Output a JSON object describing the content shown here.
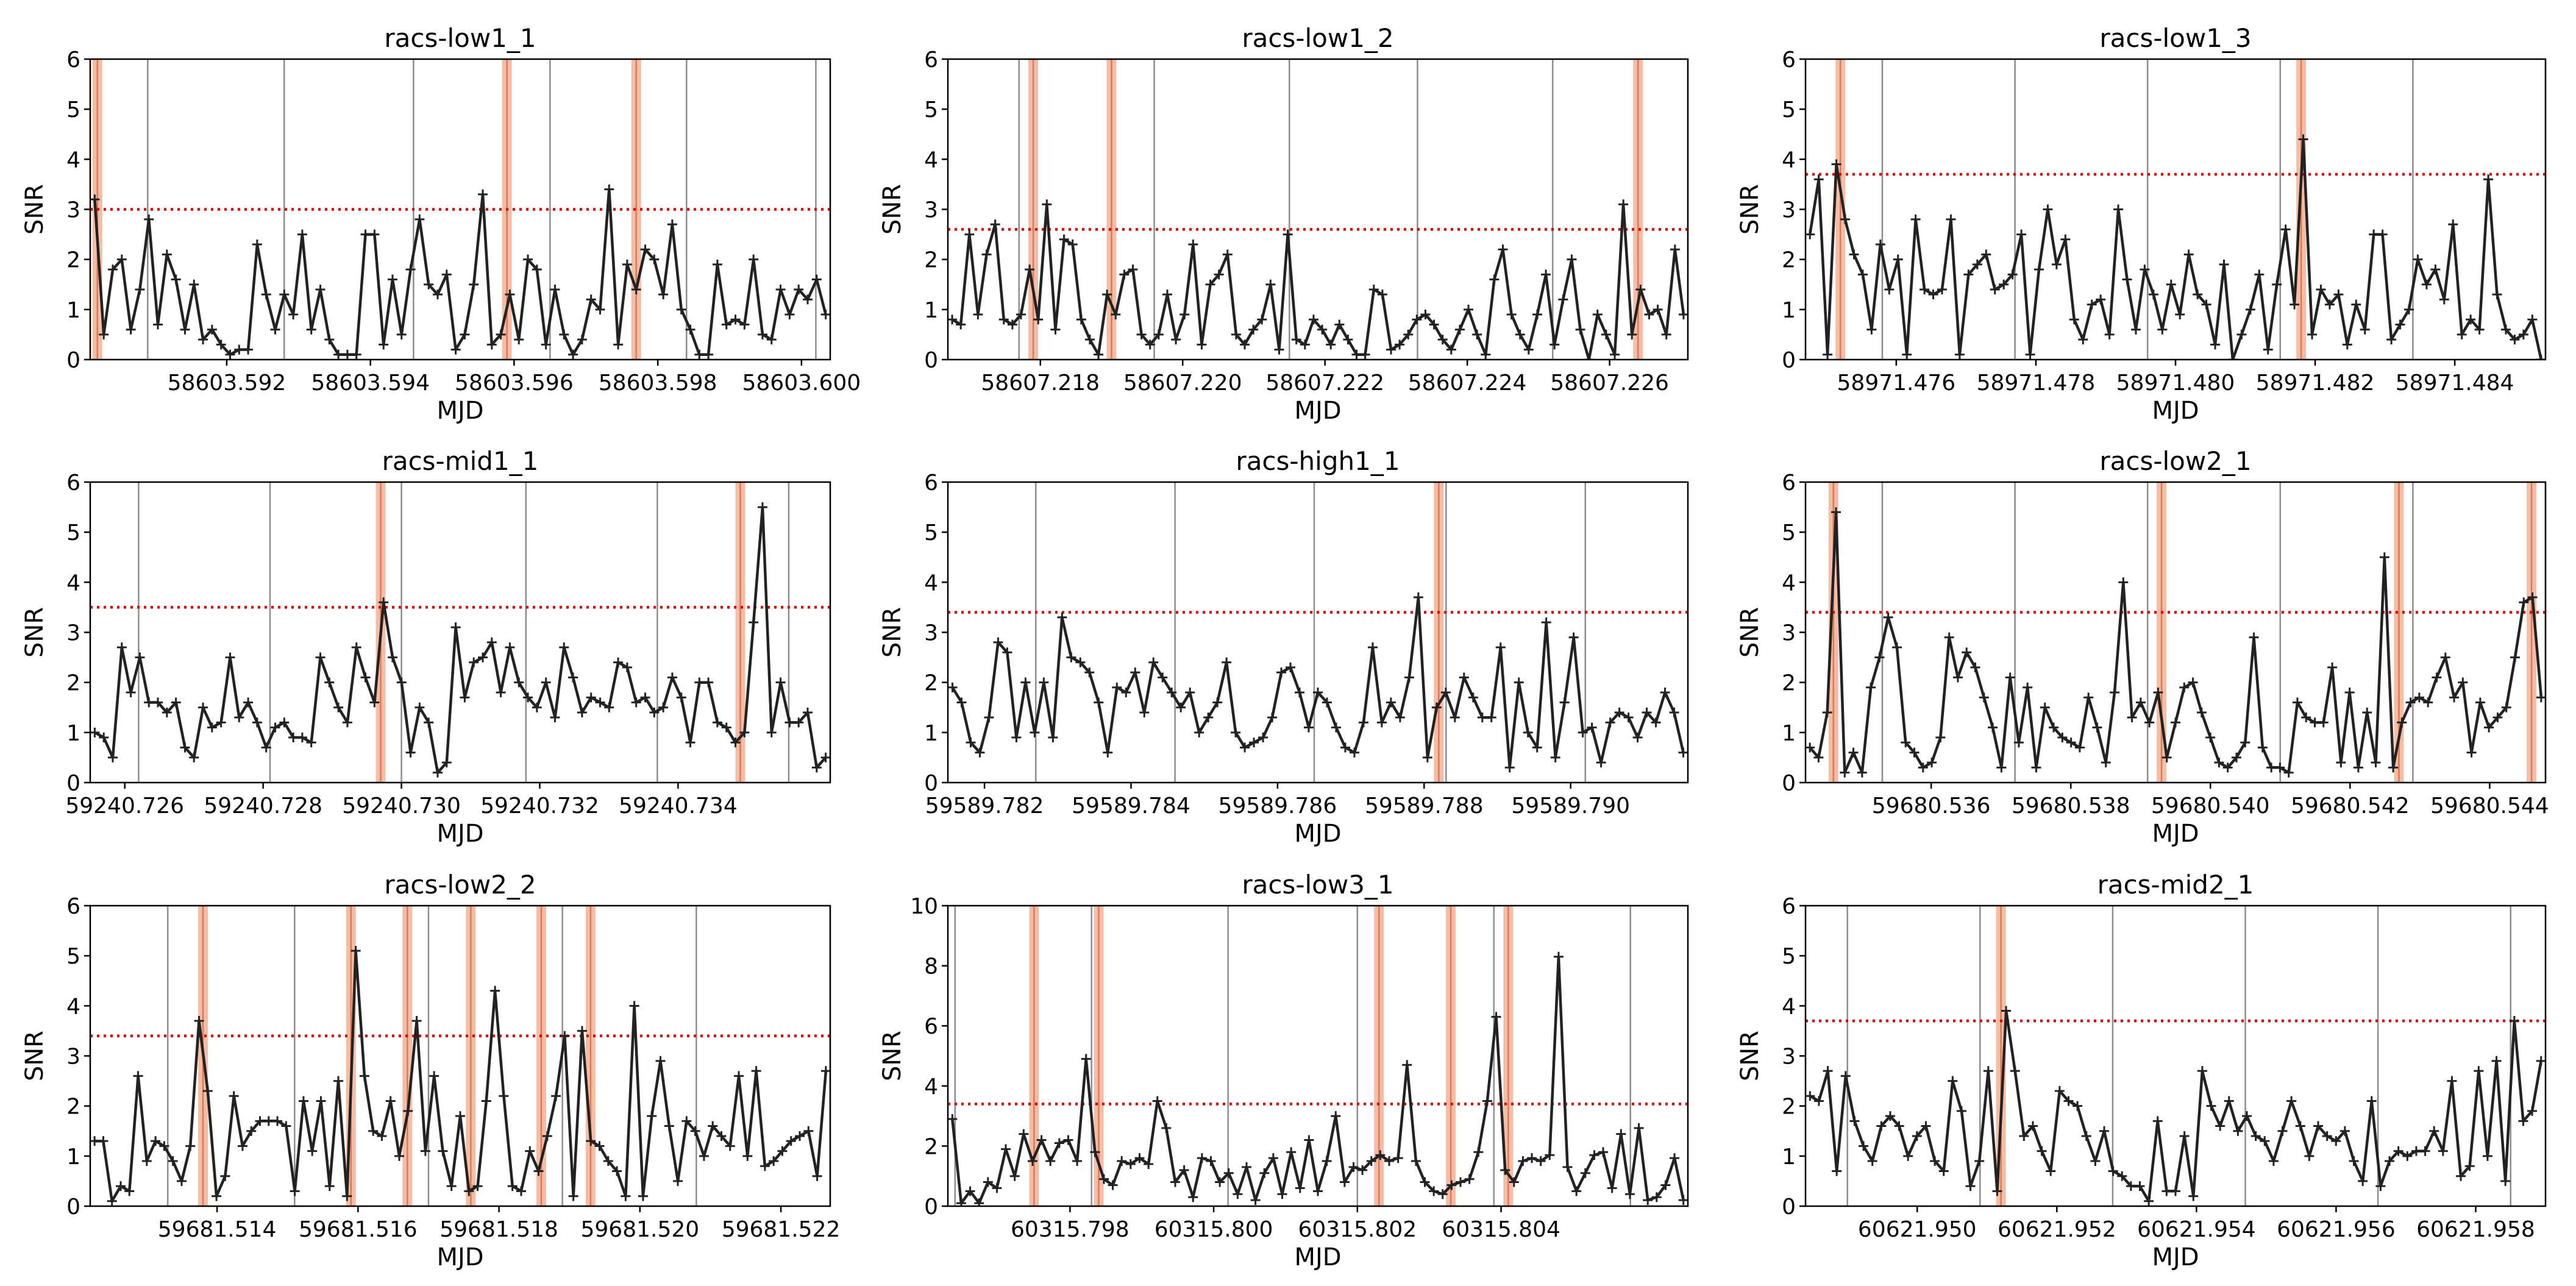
{
  "figure": {
    "background": "#ffffff",
    "colors": {
      "line": "#222222",
      "threshold": "#e00000",
      "highlight": "#f4b196",
      "highlight_edge": "#d97a55",
      "gridline": "#8c8c8c"
    }
  },
  "chart_data": [
    {
      "type": "line",
      "title": "racs-low1_1",
      "xlabel": "MJD",
      "ylabel": "SNR",
      "ylim": [
        0,
        6
      ],
      "yticks": [
        0,
        1,
        2,
        3,
        4,
        5,
        6
      ],
      "xlim": [
        58603.5901,
        58603.6004
      ],
      "xtick_values": [
        58603.592,
        58603.594,
        58603.596,
        58603.598,
        58603.6
      ],
      "xtick_labels": [
        "58603.592",
        "58603.594",
        "58603.596",
        "58603.598",
        "58603.600"
      ],
      "threshold": 3.0,
      "vlines": [
        58603.5909,
        58603.5928,
        58603.5946,
        58603.5965,
        58603.5984,
        58603.6002
      ],
      "highlights": [
        58603.5902,
        58603.5959,
        58603.5977
      ],
      "y": [
        3.2,
        0.5,
        1.8,
        2.0,
        0.6,
        1.4,
        2.8,
        0.7,
        2.1,
        1.6,
        0.6,
        1.5,
        0.4,
        0.6,
        0.3,
        0.1,
        0.2,
        0.2,
        2.3,
        1.3,
        0.6,
        1.3,
        0.9,
        2.5,
        0.6,
        1.4,
        0.4,
        0.1,
        0.1,
        0.1,
        2.5,
        2.5,
        0.3,
        1.6,
        0.5,
        1.8,
        2.8,
        1.5,
        1.3,
        1.7,
        0.2,
        0.5,
        1.5,
        3.3,
        0.3,
        0.5,
        1.3,
        0.4,
        2.0,
        1.8,
        0.3,
        1.4,
        0.5,
        0.1,
        0.4,
        1.2,
        1.0,
        3.4,
        0.3,
        1.9,
        1.4,
        2.2,
        2.0,
        1.3,
        2.7,
        1.0,
        0.6,
        0.1,
        0.1,
        1.9,
        0.7,
        0.8,
        0.7,
        2.0,
        0.5,
        0.4,
        1.4,
        0.9,
        1.4,
        1.2,
        1.6,
        0.9
      ]
    },
    {
      "type": "line",
      "title": "racs-low1_2",
      "xlabel": "MJD",
      "ylabel": "SNR",
      "ylim": [
        0,
        6
      ],
      "yticks": [
        0,
        1,
        2,
        3,
        4,
        5,
        6
      ],
      "xlim": [
        58607.2167,
        58607.2271
      ],
      "xtick_values": [
        58607.218,
        58607.22,
        58607.222,
        58607.224,
        58607.226
      ],
      "xtick_labels": [
        "58607.218",
        "58607.220",
        "58607.222",
        "58607.224",
        "58607.226"
      ],
      "threshold": 2.6,
      "vlines": [
        58607.2177,
        58607.2196,
        58607.2215,
        58607.2233,
        58607.2252,
        58607.2271
      ],
      "highlights": [
        58607.2179,
        58607.219,
        58607.2264
      ],
      "y": [
        0.8,
        0.7,
        2.5,
        0.9,
        2.1,
        2.7,
        0.8,
        0.7,
        0.9,
        1.8,
        0.8,
        3.1,
        0.6,
        2.4,
        2.3,
        0.8,
        0.4,
        0.1,
        1.3,
        0.9,
        1.7,
        1.8,
        0.5,
        0.3,
        0.5,
        1.3,
        0.4,
        0.9,
        2.3,
        0.3,
        1.5,
        1.7,
        2.1,
        0.5,
        0.3,
        0.6,
        0.8,
        1.5,
        0.2,
        2.5,
        0.4,
        0.3,
        0.8,
        0.6,
        0.3,
        0.7,
        0.4,
        0.1,
        0.1,
        1.4,
        1.3,
        0.2,
        0.3,
        0.5,
        0.8,
        0.9,
        0.7,
        0.4,
        0.2,
        0.6,
        1.0,
        0.5,
        0.1,
        1.6,
        2.2,
        0.9,
        0.5,
        0.2,
        0.9,
        1.7,
        0.3,
        1.2,
        2.0,
        0.6,
        0.0,
        0.9,
        0.5,
        0.1,
        3.1,
        0.5,
        1.4,
        0.9,
        1.0,
        0.5,
        2.2,
        0.9
      ]
    },
    {
      "type": "line",
      "title": "racs-low1_3",
      "xlabel": "MJD",
      "ylabel": "SNR",
      "ylim": [
        0,
        6
      ],
      "yticks": [
        0,
        1,
        2,
        3,
        4,
        5,
        6
      ],
      "xlim": [
        58971.4747,
        58971.4853
      ],
      "xtick_values": [
        58971.476,
        58971.478,
        58971.48,
        58971.482,
        58971.484
      ],
      "xtick_labels": [
        "58971.476",
        "58971.478",
        "58971.480",
        "58971.482",
        "58971.484"
      ],
      "threshold": 3.7,
      "vlines": [
        58971.4758,
        58971.4777,
        58971.4796,
        58971.4815,
        58971.4834,
        58971.4853
      ],
      "highlights": [
        58971.4752,
        58971.4818
      ],
      "y": [
        2.5,
        3.6,
        0.1,
        3.9,
        2.8,
        2.1,
        1.7,
        0.6,
        2.3,
        1.4,
        2.0,
        0.1,
        2.8,
        1.4,
        1.3,
        1.4,
        2.8,
        0.1,
        1.7,
        1.9,
        2.1,
        1.4,
        1.5,
        1.7,
        2.5,
        0.1,
        1.8,
        3.0,
        1.9,
        2.4,
        0.8,
        0.4,
        1.1,
        1.2,
        0.5,
        3.0,
        1.6,
        0.6,
        1.8,
        1.3,
        0.6,
        1.5,
        0.9,
        2.1,
        1.3,
        1.1,
        0.3,
        1.9,
        0.0,
        0.5,
        1.0,
        1.7,
        0.2,
        1.5,
        2.6,
        1.1,
        4.4,
        0.5,
        1.4,
        1.1,
        1.3,
        0.3,
        1.1,
        0.6,
        2.5,
        2.5,
        0.4,
        0.7,
        1.0,
        2.0,
        1.5,
        1.8,
        1.2,
        2.7,
        0.5,
        0.8,
        0.6,
        3.6,
        1.3,
        0.6,
        0.4,
        0.5,
        0.8,
        0.0
      ]
    },
    {
      "type": "line",
      "title": "racs-mid1_1",
      "xlabel": "MJD",
      "ylabel": "SNR",
      "ylim": [
        0,
        6
      ],
      "yticks": [
        0,
        1,
        2,
        3,
        4,
        5,
        6
      ],
      "xlim": [
        59240.7255,
        59240.7362
      ],
      "xtick_values": [
        59240.726,
        59240.728,
        59240.73,
        59240.732,
        59240.734
      ],
      "xtick_labels": [
        "59240.726",
        "59240.728",
        "59240.730",
        "59240.732",
        "59240.734"
      ],
      "threshold": 3.5,
      "vlines": [
        59240.7262,
        59240.7281,
        59240.73,
        59240.7318,
        59240.7337,
        59240.7356
      ],
      "highlights": [
        59240.7297,
        59240.7349
      ],
      "y": [
        1.0,
        0.9,
        0.5,
        2.7,
        1.8,
        2.5,
        1.6,
        1.6,
        1.4,
        1.6,
        0.7,
        0.5,
        1.5,
        1.1,
        1.2,
        2.5,
        1.3,
        1.6,
        1.2,
        0.7,
        1.1,
        1.2,
        0.9,
        0.9,
        0.8,
        2.5,
        2.0,
        1.5,
        1.2,
        2.7,
        2.1,
        1.6,
        3.6,
        2.5,
        2.0,
        0.6,
        1.5,
        1.2,
        0.2,
        0.4,
        3.1,
        1.7,
        2.4,
        2.5,
        2.8,
        1.8,
        2.7,
        2.0,
        1.7,
        1.5,
        2.0,
        1.3,
        2.7,
        2.1,
        1.4,
        1.7,
        1.6,
        1.5,
        2.4,
        2.3,
        1.6,
        1.7,
        1.4,
        1.5,
        2.1,
        1.7,
        0.8,
        2.0,
        2.0,
        1.2,
        1.1,
        0.8,
        1.0,
        3.2,
        5.5,
        1.0,
        2.0,
        1.2,
        1.2,
        1.4,
        0.3,
        0.5
      ]
    },
    {
      "type": "line",
      "title": "racs-high1_1",
      "xlabel": "MJD",
      "ylabel": "SNR",
      "ylim": [
        0,
        6
      ],
      "yticks": [
        0,
        1,
        2,
        3,
        4,
        5,
        6
      ],
      "xlim": [
        59589.7815,
        59589.7916
      ],
      "xtick_values": [
        59589.782,
        59589.784,
        59589.786,
        59589.788,
        59589.79
      ],
      "xtick_labels": [
        "59589.782",
        "59589.784",
        "59589.786",
        "59589.788",
        "59589.790"
      ],
      "threshold": 3.4,
      "vlines": [
        59589.7827,
        59589.7846,
        59589.7865,
        59589.7883,
        59589.7902
      ],
      "highlights": [
        59589.7882
      ],
      "y": [
        1.9,
        1.6,
        0.8,
        0.6,
        1.3,
        2.8,
        2.6,
        0.9,
        2.0,
        1.0,
        2.0,
        0.9,
        3.3,
        2.5,
        2.4,
        2.2,
        1.6,
        0.6,
        1.9,
        1.8,
        2.2,
        1.4,
        2.4,
        2.1,
        1.8,
        1.5,
        1.8,
        1.0,
        1.3,
        1.6,
        2.4,
        1.0,
        0.7,
        0.8,
        0.9,
        1.3,
        2.2,
        2.3,
        1.8,
        1.1,
        1.8,
        1.6,
        1.1,
        0.7,
        0.6,
        1.2,
        2.7,
        1.2,
        1.6,
        1.3,
        2.1,
        3.7,
        0.5,
        1.5,
        1.8,
        1.3,
        2.1,
        1.7,
        1.3,
        1.3,
        2.7,
        0.3,
        2.0,
        1.0,
        0.7,
        3.2,
        0.5,
        1.6,
        2.9,
        1.0,
        1.1,
        0.4,
        1.2,
        1.4,
        1.3,
        0.9,
        1.4,
        1.2,
        1.8,
        1.4,
        0.6
      ]
    },
    {
      "type": "line",
      "title": "racs-low2_1",
      "xlabel": "MJD",
      "ylabel": "SNR",
      "ylim": [
        0,
        6
      ],
      "yticks": [
        0,
        1,
        2,
        3,
        4,
        5,
        6
      ],
      "xlim": [
        59680.5342,
        59680.5448
      ],
      "xtick_values": [
        59680.536,
        59680.538,
        59680.54,
        59680.542,
        59680.544
      ],
      "xtick_labels": [
        "59680.536",
        "59680.538",
        "59680.540",
        "59680.542",
        "59680.544"
      ],
      "threshold": 3.4,
      "vlines": [
        59680.5353,
        59680.5372,
        59680.5391,
        59680.541,
        59680.5429,
        59680.5448
      ],
      "highlights": [
        59680.5346,
        59680.5393,
        59680.5427,
        59680.5446
      ],
      "y": [
        0.7,
        0.5,
        1.4,
        5.4,
        0.2,
        0.6,
        0.2,
        1.9,
        2.5,
        3.3,
        2.7,
        0.8,
        0.6,
        0.3,
        0.4,
        0.9,
        2.9,
        2.1,
        2.6,
        2.3,
        1.7,
        1.1,
        0.3,
        2.1,
        0.8,
        1.9,
        0.3,
        1.5,
        1.1,
        0.9,
        0.8,
        0.7,
        1.7,
        1.1,
        0.4,
        1.8,
        4.0,
        1.3,
        1.6,
        1.2,
        1.8,
        0.5,
        1.2,
        1.9,
        2.0,
        1.4,
        0.9,
        0.4,
        0.3,
        0.5,
        0.8,
        2.9,
        0.7,
        0.3,
        0.3,
        0.2,
        1.6,
        1.3,
        1.2,
        1.2,
        2.3,
        0.4,
        1.8,
        0.3,
        1.4,
        0.4,
        4.5,
        0.3,
        1.2,
        1.6,
        1.7,
        1.6,
        2.1,
        2.5,
        1.7,
        2.0,
        0.6,
        1.6,
        1.1,
        1.3,
        1.5,
        2.5,
        3.6,
        3.7,
        1.7
      ]
    },
    {
      "type": "line",
      "title": "racs-low2_2",
      "xlabel": "MJD",
      "ylabel": "SNR",
      "ylim": [
        0,
        6
      ],
      "yticks": [
        0,
        1,
        2,
        3,
        4,
        5,
        6
      ],
      "xlim": [
        59681.5122,
        59681.5227
      ],
      "xtick_values": [
        59681.514,
        59681.516,
        59681.518,
        59681.52,
        59681.522
      ],
      "xtick_labels": [
        "59681.514",
        "59681.516",
        "59681.518",
        "59681.520",
        "59681.522"
      ],
      "threshold": 3.4,
      "vlines": [
        59681.5133,
        59681.5151,
        59681.517,
        59681.5189,
        59681.5208,
        59681.5227
      ],
      "highlights": [
        59681.5138,
        59681.5159,
        59681.5167,
        59681.5176,
        59681.5186,
        59681.5193
      ],
      "y": [
        1.3,
        1.3,
        0.1,
        0.4,
        0.3,
        2.6,
        0.9,
        1.3,
        1.2,
        0.9,
        0.5,
        1.2,
        3.7,
        2.3,
        0.2,
        0.6,
        2.2,
        1.2,
        1.5,
        1.7,
        1.7,
        1.7,
        1.6,
        0.3,
        2.1,
        1.1,
        2.1,
        0.4,
        2.5,
        0.2,
        5.1,
        2.6,
        1.5,
        1.4,
        2.1,
        1.0,
        1.9,
        3.7,
        1.1,
        2.6,
        1.1,
        0.4,
        1.8,
        0.3,
        0.4,
        2.1,
        4.3,
        2.2,
        0.4,
        0.3,
        1.1,
        0.7,
        1.4,
        2.2,
        3.4,
        0.2,
        3.5,
        1.3,
        1.2,
        0.9,
        0.7,
        0.2,
        4.0,
        0.2,
        1.8,
        2.9,
        1.6,
        0.5,
        1.7,
        1.5,
        1.0,
        1.6,
        1.4,
        1.2,
        2.6,
        1.0,
        2.7,
        0.8,
        0.9,
        1.1,
        1.3,
        1.4,
        1.5,
        0.6,
        2.7
      ]
    },
    {
      "type": "line",
      "title": "racs-low3_1",
      "xlabel": "MJD",
      "ylabel": "SNR",
      "ylim": [
        0,
        10
      ],
      "yticks": [
        0,
        2,
        4,
        6,
        8,
        10
      ],
      "xlim": [
        60315.7963,
        60315.8066
      ],
      "xtick_values": [
        60315.798,
        60315.8,
        60315.802,
        60315.804
      ],
      "xtick_labels": [
        "60315.798",
        "60315.800",
        "60315.802",
        "60315.804"
      ],
      "threshold": 3.4,
      "vlines": [
        60315.7964,
        60315.7983,
        60315.8002,
        60315.802,
        60315.8039,
        60315.8058
      ],
      "highlights": [
        60315.7975,
        60315.7984,
        60315.8023,
        60315.8033,
        60315.8041
      ],
      "y": [
        2.9,
        0.1,
        0.5,
        0.1,
        0.8,
        0.6,
        1.9,
        1.0,
        2.4,
        1.5,
        2.2,
        1.5,
        2.1,
        2.2,
        1.5,
        4.9,
        1.8,
        0.9,
        0.7,
        1.5,
        1.4,
        1.6,
        1.4,
        3.5,
        2.6,
        0.8,
        1.2,
        0.3,
        1.6,
        1.5,
        0.8,
        1.1,
        0.4,
        1.3,
        0.2,
        1.1,
        1.6,
        0.4,
        1.8,
        0.6,
        2.2,
        0.5,
        1.5,
        3.0,
        0.8,
        1.3,
        1.2,
        1.5,
        1.7,
        1.5,
        1.6,
        4.7,
        1.5,
        0.8,
        0.5,
        0.4,
        0.7,
        0.8,
        0.9,
        1.8,
        3.5,
        6.3,
        1.2,
        0.8,
        1.5,
        1.6,
        1.5,
        1.7,
        8.3,
        1.3,
        0.5,
        1.1,
        1.7,
        1.8,
        0.6,
        2.4,
        0.4,
        2.6,
        0.2,
        0.3,
        0.7,
        1.6,
        0.2
      ]
    },
    {
      "type": "line",
      "title": "racs-mid2_1",
      "xlabel": "MJD",
      "ylabel": "SNR",
      "ylim": [
        0,
        6
      ],
      "yticks": [
        0,
        1,
        2,
        3,
        4,
        5,
        6
      ],
      "xlim": [
        60621.9484,
        60621.959
      ],
      "xtick_values": [
        60621.95,
        60621.952,
        60621.954,
        60621.956,
        60621.958
      ],
      "xtick_labels": [
        "60621.950",
        "60621.952",
        "60621.954",
        "60621.956",
        "60621.958"
      ],
      "threshold": 3.7,
      "vlines": [
        60621.949,
        60621.9509,
        60621.9528,
        60621.9547,
        60621.9566,
        60621.9585
      ],
      "highlights": [
        60621.9512
      ],
      "y": [
        2.2,
        2.1,
        2.7,
        0.7,
        2.6,
        1.7,
        1.2,
        0.9,
        1.6,
        1.8,
        1.6,
        1.0,
        1.4,
        1.6,
        0.9,
        0.7,
        2.5,
        1.9,
        0.4,
        0.9,
        2.7,
        0.3,
        3.9,
        2.7,
        1.4,
        1.6,
        1.1,
        0.7,
        2.3,
        2.1,
        2.0,
        1.4,
        0.9,
        1.5,
        0.7,
        0.6,
        0.4,
        0.4,
        0.1,
        1.7,
        0.3,
        0.3,
        1.4,
        0.2,
        2.7,
        2.0,
        1.6,
        2.1,
        1.5,
        1.8,
        1.4,
        1.3,
        0.9,
        1.5,
        2.1,
        1.6,
        1.0,
        1.6,
        1.4,
        1.3,
        1.5,
        0.9,
        0.5,
        2.1,
        0.4,
        0.9,
        1.1,
        1.0,
        1.1,
        1.1,
        1.5,
        1.1,
        2.5,
        0.6,
        0.8,
        2.7,
        1.0,
        2.9,
        0.5,
        3.7,
        1.7,
        1.9,
        2.9
      ]
    }
  ]
}
